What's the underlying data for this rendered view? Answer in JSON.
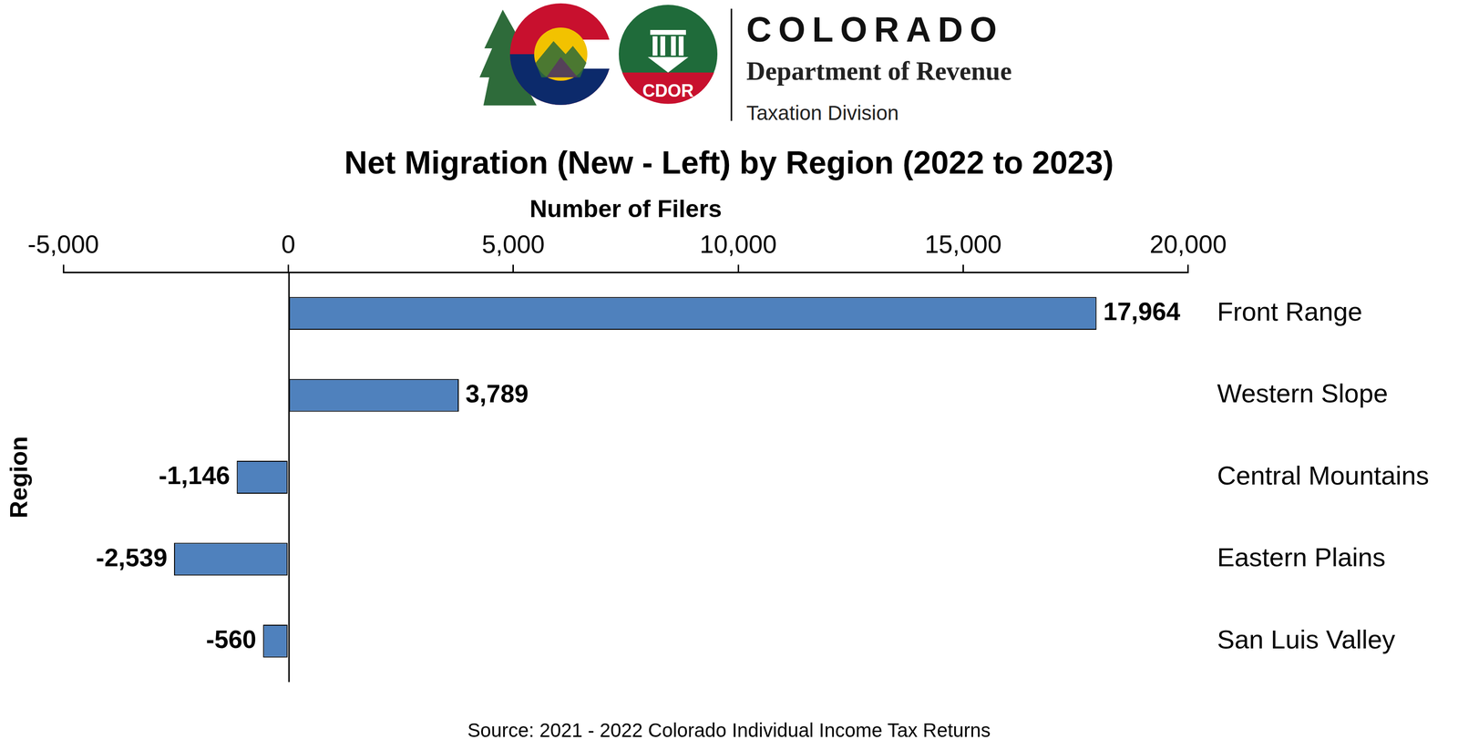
{
  "header": {
    "agency": "COLORADO",
    "department": "Department of Revenue",
    "division": "Taxation Division",
    "logo_text": "CDOR"
  },
  "chart_data": {
    "type": "bar",
    "orientation": "horizontal",
    "title": "Net Migration (New - Left) by Region (2022 to 2023)",
    "x_label": "Number of Filers",
    "y_label": "Region",
    "categories": [
      "Front Range",
      "Western Slope",
      "Central Mountains",
      "Eastern Plains",
      "San Luis Valley"
    ],
    "values": [
      17964,
      3789,
      -1146,
      -2539,
      -560
    ],
    "value_labels": [
      "17,964",
      "3,789",
      "-1,146",
      "-2,539",
      "-560"
    ],
    "data_labels": true,
    "color": "#4f81bd",
    "xlim": [
      -5000,
      20000
    ],
    "xticks": [
      {
        "value": -5000,
        "label": "-5,000"
      },
      0,
      {
        "value": 5000,
        "label": "5,000"
      },
      {
        "value": 10000,
        "label": "10,000"
      },
      {
        "value": 15000,
        "label": "15,000"
      },
      {
        "value": 20000,
        "label": "20,000"
      }
    ],
    "grid": false,
    "source": "Source: 2021 - 2022 Colorado Individual Income Tax Returns"
  }
}
